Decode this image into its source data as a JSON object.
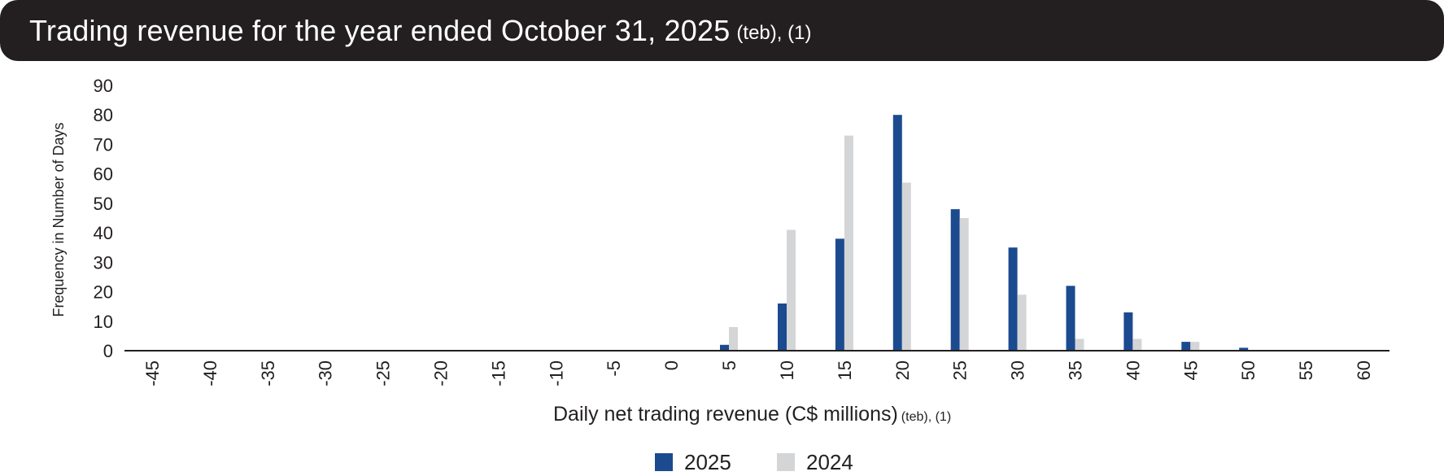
{
  "title": {
    "main": "Trading revenue for the year ended October 31, 2025",
    "suffix": "(teb), (1)"
  },
  "colors": {
    "title_bg": "#231f20",
    "series_2025": "#1c4a8f",
    "series_2024": "#d4d5d7",
    "axis": "#231f20"
  },
  "chart_data": {
    "type": "bar",
    "title": "Trading revenue for the year ended October 31, 2025 (teb), (1)",
    "xlabel": "Daily net trading revenue (C$ millions)",
    "xlabel_suffix": "(teb), (1)",
    "ylabel": "Frequency in Number of Days",
    "ylim": [
      0,
      90
    ],
    "yticks": [
      "0",
      "10",
      "20",
      "30",
      "40",
      "50",
      "60",
      "70",
      "80",
      "90"
    ],
    "categories": [
      "-45",
      "-40",
      "-35",
      "-30",
      "-25",
      "-20",
      "-15",
      "-10",
      "-5",
      "0",
      "5",
      "10",
      "15",
      "20",
      "25",
      "30",
      "35",
      "40",
      "45",
      "50",
      "55",
      "60"
    ],
    "series": [
      {
        "name": "2025",
        "color": "#1c4a8f",
        "values": [
          0,
          0,
          0,
          0,
          0,
          0,
          0,
          0,
          0,
          0,
          2,
          16,
          38,
          80,
          48,
          35,
          22,
          13,
          3,
          1,
          0,
          0
        ]
      },
      {
        "name": "2024",
        "color": "#d4d5d7",
        "values": [
          0,
          0,
          0,
          0,
          0,
          0,
          0,
          0,
          0,
          0,
          8,
          41,
          73,
          57,
          45,
          19,
          4,
          4,
          3,
          0,
          0,
          0
        ]
      }
    ],
    "legend": [
      "2025",
      "2024"
    ],
    "legend_position": "bottom-center",
    "grid": false
  }
}
